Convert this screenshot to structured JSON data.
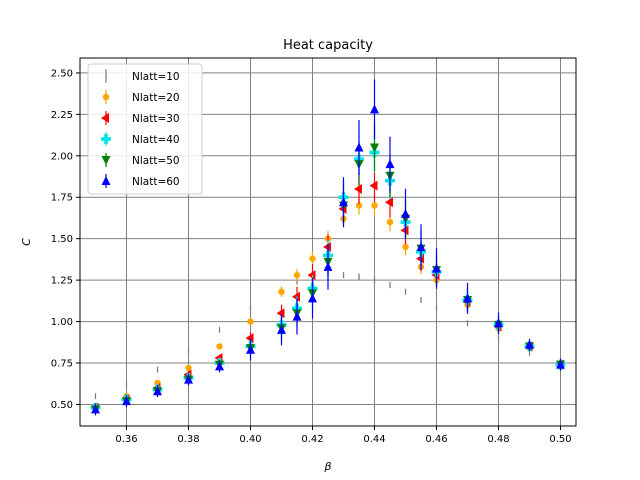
{
  "chart_data": {
    "type": "scatter",
    "title": "Heat capacity",
    "xlabel": "β",
    "ylabel": "C",
    "xlim": [
      0.345,
      0.505
    ],
    "ylim": [
      0.37,
      2.59
    ],
    "xticks": [
      "0.36",
      "0.38",
      "0.40",
      "0.42",
      "0.44",
      "0.46",
      "0.48",
      "0.50"
    ],
    "yticks": [
      "0.50",
      "0.75",
      "1.00",
      "1.25",
      "1.50",
      "1.75",
      "2.00",
      "2.25",
      "2.50"
    ],
    "grid": true,
    "legend_position": "top-left",
    "x": [
      0.35,
      0.36,
      0.37,
      0.38,
      0.39,
      0.4,
      0.41,
      0.415,
      0.42,
      0.425,
      0.43,
      0.435,
      0.44,
      0.445,
      0.45,
      0.455,
      0.46,
      0.47,
      0.48,
      0.49,
      0.5
    ],
    "series": [
      {
        "name": "Nlatt=10",
        "marker": "vline",
        "color": "#808080",
        "err": 0.01,
        "values": [
          0.55,
          0.62,
          0.71,
          0.82,
          0.95,
          1.08,
          1.19,
          1.24,
          1.27,
          1.29,
          1.28,
          1.27,
          1.25,
          1.22,
          1.18,
          1.13,
          1.08,
          0.99,
          0.9,
          0.81,
          0.73
        ]
      },
      {
        "name": "Nlatt=20",
        "marker": "circle",
        "color": "#ffa500",
        "err": 0.03,
        "values": [
          0.48,
          0.55,
          0.63,
          0.72,
          0.85,
          1.0,
          1.18,
          1.28,
          1.38,
          1.5,
          1.62,
          1.7,
          1.7,
          1.6,
          1.45,
          1.33,
          1.25,
          1.1,
          0.96,
          0.84,
          0.73
        ]
      },
      {
        "name": "Nlatt=30",
        "marker": "caretleft",
        "color": "#ff0000",
        "err": 0.05,
        "values": [
          0.48,
          0.53,
          0.6,
          0.68,
          0.78,
          0.9,
          1.05,
          1.15,
          1.28,
          1.45,
          1.68,
          1.8,
          1.82,
          1.72,
          1.55,
          1.38,
          1.28,
          1.12,
          0.97,
          0.85,
          0.74
        ]
      },
      {
        "name": "Nlatt=40",
        "marker": "plus",
        "color": "#00e5e5",
        "err": 0.06,
        "values": [
          0.48,
          0.53,
          0.59,
          0.66,
          0.75,
          0.85,
          0.98,
          1.08,
          1.2,
          1.4,
          1.75,
          1.98,
          2.02,
          1.85,
          1.6,
          1.42,
          1.3,
          1.13,
          0.98,
          0.85,
          0.74
        ]
      },
      {
        "name": "Nlatt=50",
        "marker": "triangle-down",
        "color": "#008000",
        "err": 0.07,
        "values": [
          0.47,
          0.52,
          0.58,
          0.65,
          0.74,
          0.84,
          0.96,
          1.05,
          1.17,
          1.36,
          1.7,
          1.95,
          2.05,
          1.88,
          1.62,
          1.44,
          1.31,
          1.13,
          0.98,
          0.85,
          0.74
        ]
      },
      {
        "name": "Nlatt=60",
        "marker": "triangle-up",
        "color": "#0000ff",
        "err": 0.09,
        "values": [
          0.47,
          0.52,
          0.58,
          0.65,
          0.73,
          0.83,
          0.95,
          1.03,
          1.14,
          1.33,
          1.72,
          2.05,
          2.28,
          1.95,
          1.65,
          1.45,
          1.32,
          1.14,
          0.99,
          0.86,
          0.74
        ]
      }
    ]
  }
}
